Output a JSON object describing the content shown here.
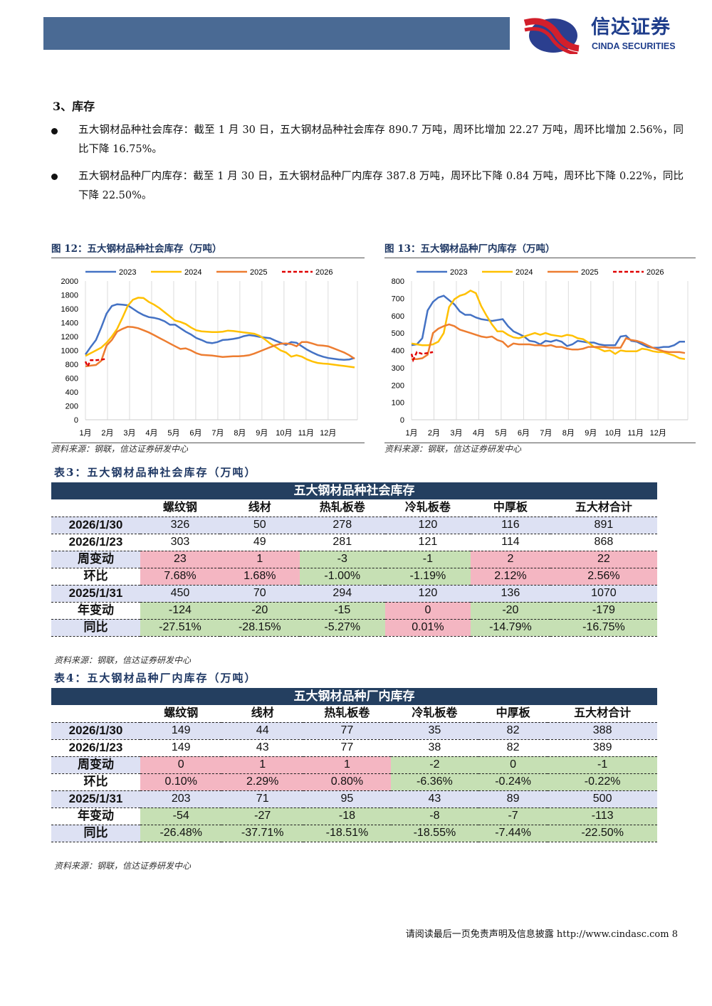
{
  "header": {
    "logo_cn": "信达证券",
    "logo_en": "CINDA SECURITIES"
  },
  "section_title": "3、库存",
  "paragraphs": [
    "五大钢材品种社会库存：截至 1 月 30 日，五大钢材品种社会库存 890.7 万吨，周环比增加 22.27 万吨，周环比增加 2.56%，同比下降 16.75%。",
    "五大钢材品种厂内库存：截至 1 月 30 日，五大钢材品种厂内库存 387.8 万吨，周环比下降 0.84 万吨，周环比下降 0.22%，同比下降 22.50%。"
  ],
  "colors": {
    "2023": "#4472c4",
    "2024": "#ffc000",
    "2025": "#ed7d31",
    "2026": "#e00000"
  },
  "chart_data": [
    {
      "type": "line",
      "title": "图 12：五大钢材品种社会库存（万吨）",
      "source": "资料来源：钢联，信达证券研发中心",
      "ylim": [
        0,
        2000
      ],
      "yticks": [
        0,
        200,
        400,
        600,
        800,
        1000,
        1200,
        1400,
        1600,
        1800,
        2000
      ],
      "xlabel_ticks": [
        "1月",
        "2月",
        "3月",
        "4月",
        "5月",
        "6月",
        "7月",
        "8月",
        "9月",
        "10月",
        "11月",
        "12月"
      ],
      "x_unit": "week",
      "legend": "top",
      "series": [
        {
          "name": "2023",
          "values": [
            940,
            1050,
            1150,
            1330,
            1530,
            1640,
            1665,
            1660,
            1650,
            1600,
            1550,
            1510,
            1480,
            1470,
            1450,
            1420,
            1370,
            1370,
            1320,
            1270,
            1230,
            1180,
            1150,
            1115,
            1105,
            1120,
            1150,
            1155,
            1165,
            1180,
            1205,
            1220,
            1210,
            1195,
            1185,
            1175,
            1140,
            1110,
            1080,
            1120,
            1110,
            1060,
            1010,
            970,
            935,
            910,
            890,
            880,
            870,
            865,
            870,
            890
          ]
        },
        {
          "name": "2024",
          "values": [
            920,
            960,
            1000,
            1040,
            1110,
            1200,
            1310,
            1470,
            1640,
            1730,
            1760,
            1755,
            1700,
            1660,
            1610,
            1550,
            1490,
            1430,
            1410,
            1380,
            1330,
            1290,
            1275,
            1270,
            1265,
            1265,
            1270,
            1285,
            1280,
            1270,
            1260,
            1250,
            1240,
            1210,
            1160,
            1100,
            1050,
            1000,
            970,
            910,
            930,
            910,
            870,
            840,
            820,
            810,
            805,
            795,
            785,
            775,
            765,
            755
          ]
        },
        {
          "name": "2025",
          "values": [
            770,
            780,
            790,
            850,
            1070,
            1150,
            1270,
            1310,
            1340,
            1335,
            1320,
            1290,
            1260,
            1220,
            1180,
            1140,
            1100,
            1060,
            1020,
            1030,
            1000,
            960,
            935,
            930,
            925,
            915,
            905,
            910,
            915,
            915,
            920,
            930,
            955,
            985,
            1015,
            1045,
            1075,
            1095,
            1100,
            1090,
            1060,
            1120,
            1120,
            1100,
            1075,
            1070,
            1060,
            1030,
            1000,
            970,
            930,
            880
          ]
        },
        {
          "name": "2026",
          "x": [
            0,
            0.4,
            1,
            2,
            3,
            4
          ],
          "values": [
            840,
            770,
            860,
            860,
            865,
            880
          ],
          "dashed": true
        }
      ]
    },
    {
      "type": "line",
      "title": "图 13：五大钢材品种厂内库存（万吨）",
      "source": "资料来源：钢联，信达证券研发中心",
      "ylim": [
        0,
        800
      ],
      "yticks": [
        0,
        100,
        200,
        300,
        400,
        500,
        600,
        700,
        800
      ],
      "xlabel_ticks": [
        "1月",
        "2月",
        "3月",
        "4月",
        "5月",
        "6月",
        "7月",
        "8月",
        "9月",
        "10月",
        "11月",
        "12月"
      ],
      "x_unit": "week",
      "legend": "top",
      "series": [
        {
          "name": "2023",
          "values": [
            430,
            435,
            470,
            630,
            680,
            705,
            715,
            690,
            665,
            625,
            605,
            605,
            590,
            580,
            575,
            570,
            575,
            580,
            540,
            510,
            495,
            480,
            455,
            450,
            435,
            455,
            450,
            460,
            450,
            425,
            435,
            455,
            450,
            445,
            445,
            435,
            430,
            430,
            430,
            480,
            485,
            455,
            450,
            435,
            420,
            415,
            415,
            420,
            420,
            430,
            450,
            450
          ]
        },
        {
          "name": "2024",
          "values": [
            440,
            435,
            430,
            430,
            435,
            450,
            500,
            650,
            695,
            715,
            725,
            745,
            730,
            655,
            600,
            550,
            510,
            510,
            490,
            475,
            470,
            480,
            490,
            500,
            490,
            500,
            490,
            485,
            480,
            490,
            485,
            470,
            465,
            445,
            420,
            410,
            395,
            400,
            380,
            400,
            395,
            395,
            395,
            410,
            405,
            395,
            390,
            390,
            380,
            370,
            355,
            350
          ]
        },
        {
          "name": "2025",
          "values": [
            350,
            350,
            355,
            375,
            500,
            525,
            540,
            550,
            540,
            520,
            510,
            500,
            490,
            480,
            475,
            480,
            460,
            450,
            420,
            440,
            435,
            435,
            435,
            430,
            430,
            425,
            430,
            420,
            420,
            410,
            405,
            405,
            410,
            420,
            420,
            420,
            420,
            415,
            415,
            415,
            470,
            460,
            455,
            445,
            430,
            415,
            405,
            395,
            390,
            390,
            390,
            385
          ]
        },
        {
          "name": "2026",
          "x": [
            0,
            0.3,
            1,
            2,
            3,
            4
          ],
          "values": [
            380,
            345,
            390,
            380,
            385,
            390
          ],
          "dashed": true
        }
      ]
    }
  ],
  "tables": [
    {
      "title": "表3：五大钢材品种社会库存（万吨）",
      "header": "五大钢材品种社会库存",
      "source": "资料来源：钢联，信达证券研发中心",
      "columns": [
        "螺纹钢",
        "线材",
        "热轧板卷",
        "冷轧板卷",
        "中厚板",
        "五大材合计"
      ],
      "rows": [
        {
          "label": "2026/1/30",
          "cells": [
            [
              "326",
              ""
            ],
            [
              "50",
              ""
            ],
            [
              "278",
              ""
            ],
            [
              "120",
              ""
            ],
            [
              "116",
              ""
            ],
            [
              "891",
              ""
            ]
          ]
        },
        {
          "label": "2026/1/23",
          "cells": [
            [
              "303",
              ""
            ],
            [
              "49",
              ""
            ],
            [
              "281",
              ""
            ],
            [
              "121",
              ""
            ],
            [
              "114",
              ""
            ],
            [
              "868",
              ""
            ]
          ]
        },
        {
          "label": "周变动",
          "cells": [
            [
              "23",
              "up"
            ],
            [
              "1",
              "up"
            ],
            [
              "-3",
              "down"
            ],
            [
              "-1",
              "down"
            ],
            [
              "2",
              "up"
            ],
            [
              "22",
              "up"
            ]
          ]
        },
        {
          "label": "环比",
          "cells": [
            [
              "7.68%",
              "up"
            ],
            [
              "1.68%",
              "up"
            ],
            [
              "-1.00%",
              "down"
            ],
            [
              "-1.19%",
              "down"
            ],
            [
              "2.12%",
              "up"
            ],
            [
              "2.56%",
              "up"
            ]
          ]
        },
        {
          "label": "2025/1/31",
          "cells": [
            [
              "450",
              ""
            ],
            [
              "70",
              ""
            ],
            [
              "294",
              ""
            ],
            [
              "120",
              ""
            ],
            [
              "136",
              ""
            ],
            [
              "1070",
              ""
            ]
          ]
        },
        {
          "label": "年变动",
          "cells": [
            [
              "-124",
              "down"
            ],
            [
              "-20",
              "down"
            ],
            [
              "-15",
              "down"
            ],
            [
              "0",
              "up"
            ],
            [
              "-20",
              "down"
            ],
            [
              "-179",
              "down"
            ]
          ]
        },
        {
          "label": "同比",
          "cells": [
            [
              "-27.51%",
              "down"
            ],
            [
              "-28.15%",
              "down"
            ],
            [
              "-5.27%",
              "down"
            ],
            [
              "0.01%",
              "up"
            ],
            [
              "-14.79%",
              "down"
            ],
            [
              "-16.75%",
              "down"
            ]
          ]
        }
      ]
    },
    {
      "title": "表4：五大钢材品种厂内库存（万吨）",
      "header": "五大钢材品种厂内库存",
      "source": "资料来源：钢联，信达证券研发中心",
      "columns": [
        "螺纹钢",
        "线材",
        "热轧板卷",
        "冷轧板卷",
        "中厚板",
        "五大材合计"
      ],
      "rows": [
        {
          "label": "2026/1/30",
          "cells": [
            [
              "149",
              ""
            ],
            [
              "44",
              ""
            ],
            [
              "77",
              ""
            ],
            [
              "35",
              ""
            ],
            [
              "82",
              ""
            ],
            [
              "388",
              ""
            ]
          ]
        },
        {
          "label": "2026/1/23",
          "cells": [
            [
              "149",
              ""
            ],
            [
              "43",
              ""
            ],
            [
              "77",
              ""
            ],
            [
              "38",
              ""
            ],
            [
              "82",
              ""
            ],
            [
              "389",
              ""
            ]
          ]
        },
        {
          "label": "周变动",
          "cells": [
            [
              "0",
              "up"
            ],
            [
              "1",
              "up"
            ],
            [
              "1",
              "up"
            ],
            [
              "-2",
              "down"
            ],
            [
              "0",
              "down"
            ],
            [
              "-1",
              "down"
            ]
          ]
        },
        {
          "label": "环比",
          "cells": [
            [
              "0.10%",
              "up"
            ],
            [
              "2.29%",
              "up"
            ],
            [
              "0.80%",
              "up"
            ],
            [
              "-6.36%",
              "down"
            ],
            [
              "-0.24%",
              "down"
            ],
            [
              "-0.22%",
              "down"
            ]
          ]
        },
        {
          "label": "2025/1/31",
          "cells": [
            [
              "203",
              ""
            ],
            [
              "71",
              ""
            ],
            [
              "95",
              ""
            ],
            [
              "43",
              ""
            ],
            [
              "89",
              ""
            ],
            [
              "500",
              ""
            ]
          ]
        },
        {
          "label": "年变动",
          "cells": [
            [
              "-54",
              "down"
            ],
            [
              "-27",
              "down"
            ],
            [
              "-18",
              "down"
            ],
            [
              "-8",
              "down"
            ],
            [
              "-7",
              "down"
            ],
            [
              "-113",
              "down"
            ]
          ]
        },
        {
          "label": "同比",
          "cells": [
            [
              "-26.48%",
              "down"
            ],
            [
              "-37.71%",
              "down"
            ],
            [
              "-18.51%",
              "down"
            ],
            [
              "-18.55%",
              "down"
            ],
            [
              "-7.44%",
              "down"
            ],
            [
              "-22.50%",
              "down"
            ]
          ]
        }
      ]
    }
  ],
  "footer": {
    "text": "请阅读最后一页免责声明及信息披露 http://www.cindasc.com",
    "page": "8"
  }
}
